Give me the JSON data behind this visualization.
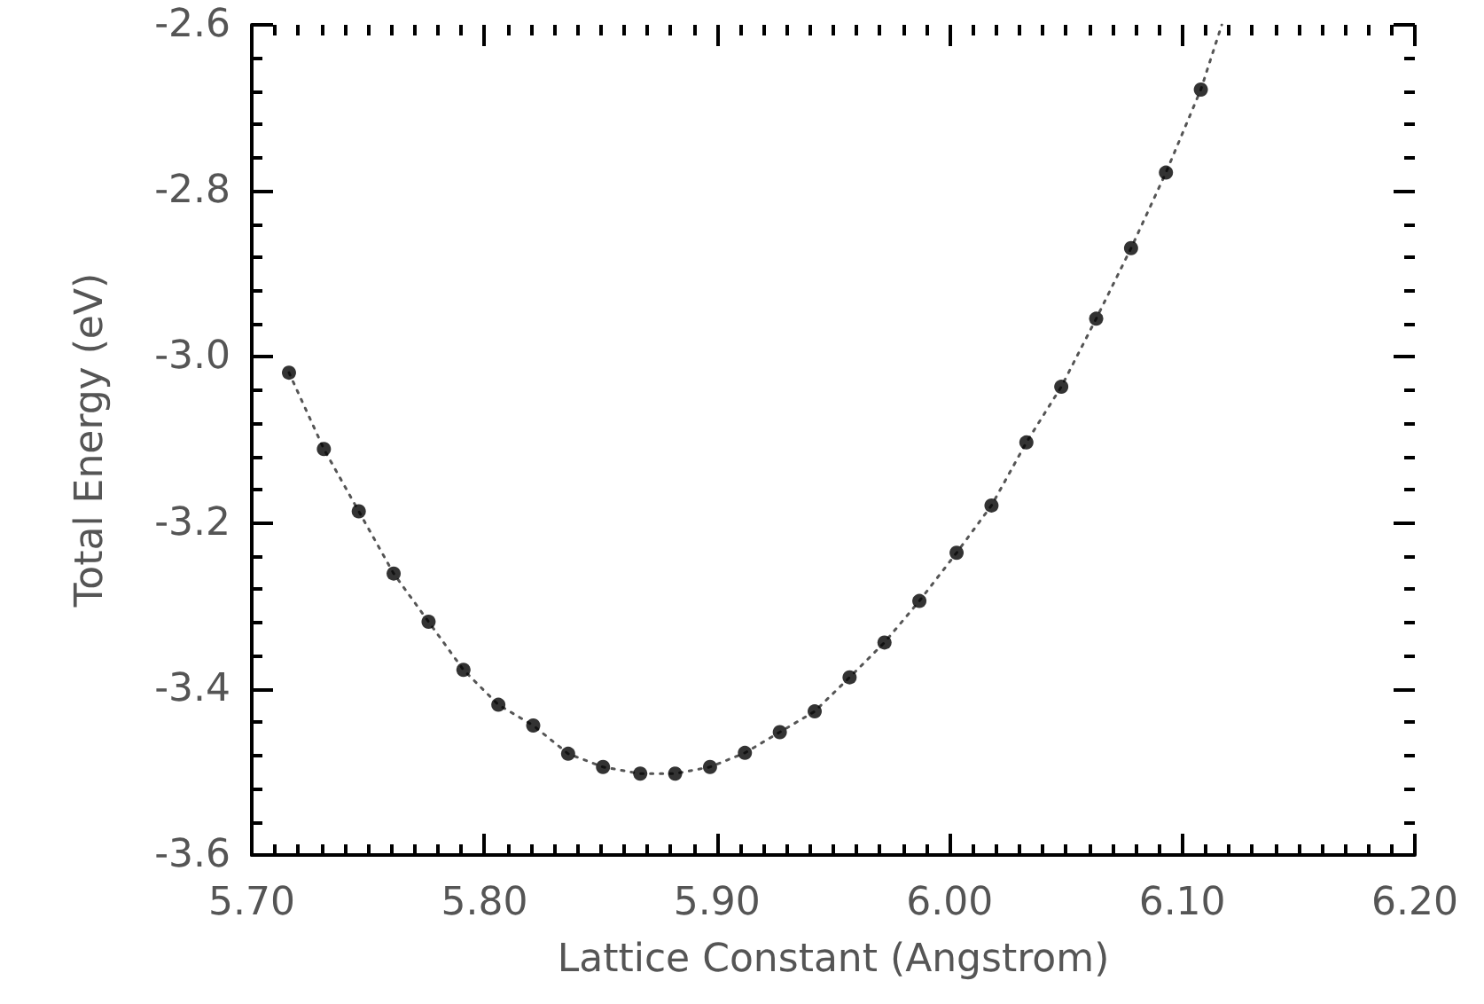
{
  "chart_data": {
    "type": "scatter",
    "xlabel": "Lattice Constant (Angstrom)",
    "ylabel": "Total Energy (eV)",
    "xlim": [
      5.7,
      6.2
    ],
    "ylim": [
      -3.6,
      -2.6
    ],
    "xticks": [
      {
        "value": 5.7,
        "label": "5.70"
      },
      {
        "value": 5.71,
        "label": null
      },
      {
        "value": 5.72,
        "label": null
      },
      {
        "value": 5.73,
        "label": null
      },
      {
        "value": 5.74,
        "label": null
      },
      {
        "value": 5.75,
        "label": null
      },
      {
        "value": 5.76,
        "label": null
      },
      {
        "value": 5.77,
        "label": null
      },
      {
        "value": 5.78,
        "label": null
      },
      {
        "value": 5.79,
        "label": null
      },
      {
        "value": 5.8,
        "label": "5.80"
      },
      {
        "value": 5.81,
        "label": null
      },
      {
        "value": 5.82,
        "label": null
      },
      {
        "value": 5.83,
        "label": null
      },
      {
        "value": 5.84,
        "label": null
      },
      {
        "value": 5.85,
        "label": null
      },
      {
        "value": 5.86,
        "label": null
      },
      {
        "value": 5.87,
        "label": null
      },
      {
        "value": 5.88,
        "label": null
      },
      {
        "value": 5.89,
        "label": null
      },
      {
        "value": 5.9,
        "label": "5.90"
      },
      {
        "value": 5.91,
        "label": null
      },
      {
        "value": 5.92,
        "label": null
      },
      {
        "value": 5.93,
        "label": null
      },
      {
        "value": 5.94,
        "label": null
      },
      {
        "value": 5.95,
        "label": null
      },
      {
        "value": 5.96,
        "label": null
      },
      {
        "value": 5.97,
        "label": null
      },
      {
        "value": 5.98,
        "label": null
      },
      {
        "value": 5.99,
        "label": null
      },
      {
        "value": 6.0,
        "label": "6.00"
      },
      {
        "value": 6.01,
        "label": null
      },
      {
        "value": 6.02,
        "label": null
      },
      {
        "value": 6.03,
        "label": null
      },
      {
        "value": 6.04,
        "label": null
      },
      {
        "value": 6.05,
        "label": null
      },
      {
        "value": 6.06,
        "label": null
      },
      {
        "value": 6.07,
        "label": null
      },
      {
        "value": 6.08,
        "label": null
      },
      {
        "value": 6.09,
        "label": null
      },
      {
        "value": 6.1,
        "label": "6.10"
      },
      {
        "value": 6.11,
        "label": null
      },
      {
        "value": 6.12,
        "label": null
      },
      {
        "value": 6.13,
        "label": null
      },
      {
        "value": 6.14,
        "label": null
      },
      {
        "value": 6.15,
        "label": null
      },
      {
        "value": 6.16,
        "label": null
      },
      {
        "value": 6.17,
        "label": null
      },
      {
        "value": 6.18,
        "label": null
      },
      {
        "value": 6.19,
        "label": null
      },
      {
        "value": 6.2,
        "label": "6.20"
      }
    ],
    "yticks": [
      {
        "value": -3.6,
        "label": "-3.6"
      },
      {
        "value": -3.56,
        "label": null
      },
      {
        "value": -3.52,
        "label": null
      },
      {
        "value": -3.48,
        "label": null
      },
      {
        "value": -3.44,
        "label": null
      },
      {
        "value": -3.4,
        "label": "-3.4"
      },
      {
        "value": -3.36,
        "label": null
      },
      {
        "value": -3.32,
        "label": null
      },
      {
        "value": -3.28,
        "label": null
      },
      {
        "value": -3.24,
        "label": null
      },
      {
        "value": -3.2,
        "label": "-3.2"
      },
      {
        "value": -3.16,
        "label": null
      },
      {
        "value": -3.12,
        "label": null
      },
      {
        "value": -3.08,
        "label": null
      },
      {
        "value": -3.04,
        "label": null
      },
      {
        "value": -3.0,
        "label": "-3.0"
      },
      {
        "value": -2.96,
        "label": null
      },
      {
        "value": -2.92,
        "label": null
      },
      {
        "value": -2.88,
        "label": null
      },
      {
        "value": -2.84,
        "label": null
      },
      {
        "value": -2.8,
        "label": "-2.8"
      },
      {
        "value": -2.76,
        "label": null
      },
      {
        "value": -2.72,
        "label": null
      },
      {
        "value": -2.68,
        "label": null
      },
      {
        "value": -2.64,
        "label": null
      },
      {
        "value": -2.6,
        "label": "-2.6"
      }
    ],
    "x": [
      5.716,
      5.731,
      5.746,
      5.761,
      5.776,
      5.791,
      5.806,
      5.821,
      5.836,
      5.851,
      5.867,
      5.882,
      5.897,
      5.912,
      5.927,
      5.942,
      5.957,
      5.972,
      5.987,
      6.003,
      6.018,
      6.033,
      6.048,
      6.063,
      6.078,
      6.093,
      6.108
    ],
    "series": [
      {
        "color": "#000000",
        "marker": "circle",
        "values": [
          -3.019,
          -3.111,
          -3.186,
          -3.261,
          -3.319,
          -3.377,
          -3.419,
          -3.444,
          -3.478,
          -3.494,
          -3.502,
          -3.502,
          -3.494,
          -3.477,
          -3.452,
          -3.427,
          -3.386,
          -3.344,
          -3.294,
          -3.236,
          -3.179,
          -3.103,
          -3.036,
          -2.954,
          -2.869,
          -2.778,
          -2.678
        ]
      },
      {
        "type": "line",
        "color": "#555555",
        "marker": "none",
        "line_style": "dotted",
        "x": [
          5.716,
          5.731,
          5.746,
          5.761,
          5.776,
          5.791,
          5.806,
          5.821,
          5.836,
          5.851,
          5.867,
          5.882,
          5.897,
          5.912,
          5.927,
          5.942,
          5.957,
          5.972,
          5.987,
          6.003,
          6.018,
          6.033,
          6.048,
          6.063,
          6.078,
          6.093,
          6.108,
          6.117
        ],
        "values": [
          -3.019,
          -3.111,
          -3.186,
          -3.261,
          -3.319,
          -3.377,
          -3.419,
          -3.444,
          -3.478,
          -3.494,
          -3.502,
          -3.502,
          -3.494,
          -3.477,
          -3.452,
          -3.427,
          -3.386,
          -3.344,
          -3.294,
          -3.236,
          -3.179,
          -3.103,
          -3.036,
          -2.954,
          -2.869,
          -2.778,
          -2.678,
          -2.6
        ]
      }
    ]
  }
}
